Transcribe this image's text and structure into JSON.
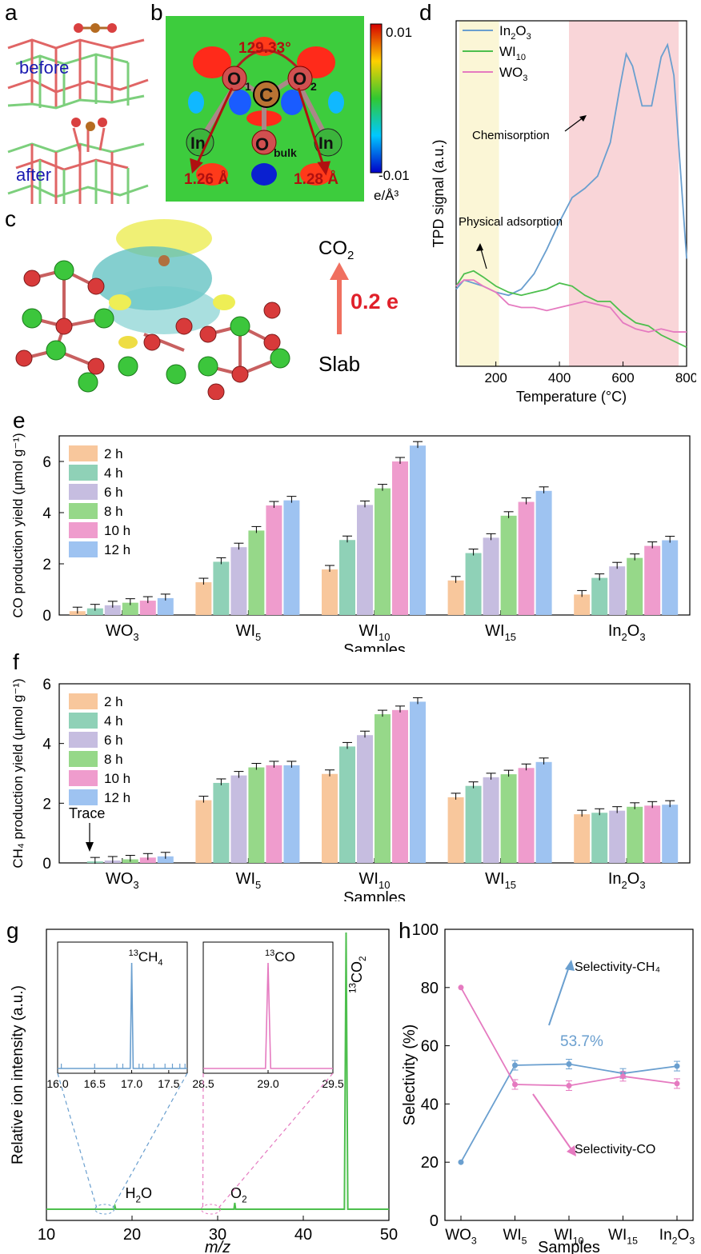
{
  "panels": {
    "a": {
      "letter": "a",
      "label_before": "before",
      "label_after": "after"
    },
    "b": {
      "letter": "b",
      "angle": "129.33°",
      "atoms": [
        "O",
        "1",
        "C",
        "O",
        "2",
        "In",
        "In",
        "O",
        "bulk"
      ],
      "dist_left": "1.26 Å",
      "dist_right": "1.28 Å",
      "colorbar_max": "0.01",
      "colorbar_min": "-0.01",
      "colorbar_unit": "e/Å³"
    },
    "c": {
      "letter": "c",
      "top_label": "CO",
      "top_sub": "2",
      "arrow_value": "0.2 e",
      "bottom_label": "Slab"
    },
    "d": {
      "letter": "d"
    },
    "e": {
      "letter": "e"
    },
    "f": {
      "letter": "f",
      "annotation": "Trace"
    },
    "g": {
      "letter": "g"
    },
    "h": {
      "letter": "h"
    }
  },
  "colors": {
    "h2": "#f8c79c",
    "h4": "#8fd1b7",
    "h6": "#c6bde0",
    "h8": "#96d889",
    "h10": "#ef9ccd",
    "h12": "#9ec3f1",
    "in2o3": "#6a9fcf",
    "wi10": "#4dbf4d",
    "wo3": "#e57ac0",
    "green_ms": "#4dbf4d",
    "blue_ms": "#6a9fcf",
    "pink_ms": "#e57ac0"
  },
  "chart_data": [
    {
      "id": "d",
      "type": "line",
      "xlabel": "Temperature (°C)",
      "ylabel": "TPD signal (a.u.)",
      "xlim": [
        75,
        800
      ],
      "xticks": [
        200,
        400,
        600,
        800
      ],
      "legend": [
        "In2O3",
        "WI10",
        "WO3"
      ],
      "annotations": [
        "Chemisorption",
        "Physical adsorption"
      ],
      "shaded_regions": [
        {
          "from": 85,
          "to": 210,
          "color": "#fbf6d6"
        },
        {
          "from": 430,
          "to": 775,
          "color": "#f9d5d8"
        }
      ],
      "series": [
        {
          "name": "In2O3",
          "color": "#6a9fcf",
          "x": [
            75,
            100,
            130,
            160,
            200,
            240,
            280,
            320,
            360,
            400,
            440,
            480,
            520,
            560,
            590,
            610,
            630,
            660,
            690,
            720,
            740,
            760,
            780,
            800
          ],
          "y": [
            0.2,
            0.23,
            0.22,
            0.21,
            0.19,
            0.18,
            0.2,
            0.25,
            0.33,
            0.42,
            0.5,
            0.53,
            0.57,
            0.68,
            0.86,
            0.97,
            0.93,
            0.8,
            0.8,
            0.96,
            1.0,
            0.9,
            0.6,
            0.3
          ]
        },
        {
          "name": "WI10",
          "color": "#4dbf4d",
          "x": [
            75,
            100,
            130,
            160,
            200,
            240,
            280,
            320,
            360,
            400,
            440,
            480,
            520,
            560,
            600,
            640,
            680,
            720,
            760,
            800
          ],
          "y": [
            0.21,
            0.25,
            0.26,
            0.24,
            0.21,
            0.19,
            0.18,
            0.19,
            0.2,
            0.22,
            0.21,
            0.18,
            0.16,
            0.16,
            0.12,
            0.09,
            0.08,
            0.05,
            0.03,
            0.01
          ]
        },
        {
          "name": "WO3",
          "color": "#e57ac0",
          "x": [
            75,
            100,
            130,
            160,
            200,
            240,
            280,
            320,
            360,
            400,
            440,
            480,
            520,
            560,
            600,
            640,
            680,
            720,
            760,
            800
          ],
          "y": [
            0.21,
            0.23,
            0.23,
            0.21,
            0.19,
            0.15,
            0.14,
            0.14,
            0.13,
            0.14,
            0.15,
            0.16,
            0.15,
            0.14,
            0.09,
            0.07,
            0.06,
            0.07,
            0.06,
            0.06
          ]
        }
      ]
    },
    {
      "id": "e",
      "type": "bar",
      "xlabel": "Samples",
      "ylabel": "CO production yield (μmol g⁻¹)",
      "ylim": [
        0,
        7
      ],
      "yticks": [
        0,
        2,
        4,
        6
      ],
      "categories": [
        "WO3",
        "WI5",
        "WI10",
        "WI15",
        "In2O3"
      ],
      "series": [
        {
          "name": "2 h",
          "values": [
            0.15,
            1.28,
            1.78,
            1.35,
            0.8
          ]
        },
        {
          "name": "4 h",
          "values": [
            0.26,
            2.08,
            2.93,
            2.42,
            1.45
          ]
        },
        {
          "name": "6 h",
          "values": [
            0.38,
            2.65,
            4.3,
            3.02,
            1.9
          ]
        },
        {
          "name": "8 h",
          "values": [
            0.48,
            3.3,
            4.95,
            3.88,
            2.23
          ]
        },
        {
          "name": "10 h",
          "values": [
            0.56,
            4.28,
            6.0,
            4.42,
            2.7
          ]
        },
        {
          "name": "12 h",
          "values": [
            0.66,
            4.48,
            6.62,
            4.85,
            2.92
          ]
        }
      ]
    },
    {
      "id": "f",
      "type": "bar",
      "xlabel": "Samples",
      "ylabel": "CH₄ production yield (μmol g⁻¹)",
      "ylim": [
        0,
        6
      ],
      "yticks": [
        0,
        2,
        4,
        6
      ],
      "categories": [
        "WO3",
        "WI5",
        "WI10",
        "WI15",
        "In2O3"
      ],
      "series": [
        {
          "name": "2 h",
          "values": [
            0.0,
            2.1,
            2.98,
            2.2,
            1.63
          ]
        },
        {
          "name": "4 h",
          "values": [
            0.05,
            2.68,
            3.9,
            2.58,
            1.68
          ]
        },
        {
          "name": "6 h",
          "values": [
            0.08,
            2.93,
            4.28,
            2.87,
            1.75
          ]
        },
        {
          "name": "8 h",
          "values": [
            0.12,
            3.2,
            4.98,
            2.97,
            1.88
          ]
        },
        {
          "name": "10 h",
          "values": [
            0.18,
            3.27,
            5.12,
            3.18,
            1.92
          ]
        },
        {
          "name": "12 h",
          "values": [
            0.22,
            3.27,
            5.4,
            3.38,
            1.95
          ]
        }
      ]
    },
    {
      "id": "g",
      "type": "line",
      "xlabel": "m/z",
      "ylabel": "Relative ion intensity (a.u.)",
      "xlim": [
        10,
        50
      ],
      "xticks": [
        10,
        20,
        30,
        40,
        50
      ],
      "peaks": [
        {
          "label": "H2O",
          "mz": 18
        },
        {
          "label": "O2",
          "mz": 32
        },
        {
          "label": "13CO2",
          "mz": 45
        }
      ],
      "insets": [
        {
          "label": "13CH4",
          "xlim": [
            16.0,
            17.75
          ],
          "xticks": [
            "16.0",
            "16.5",
            "17.0",
            "17.5"
          ],
          "peak": 17.0
        },
        {
          "label": "13CO",
          "xlim": [
            28.5,
            29.5
          ],
          "xticks": [
            "28.5",
            "29.0",
            "29.5"
          ],
          "peak": 29.0
        }
      ]
    },
    {
      "id": "h",
      "type": "line",
      "xlabel": "Samples",
      "ylabel": "Selectivity (%)",
      "ylim": [
        0,
        100
      ],
      "yticks": [
        0,
        20,
        40,
        60,
        80,
        100
      ],
      "categories": [
        "WO3",
        "WI5",
        "WI10",
        "WI15",
        "In2O3"
      ],
      "annotations": [
        "Selectivity-CH₄",
        "Selectivity-CO",
        "53.7%"
      ],
      "series": [
        {
          "name": "Selectivity-CH₄",
          "values": [
            20.0,
            53.3,
            53.7,
            50.5,
            53.0
          ]
        },
        {
          "name": "Selectivity-CO",
          "values": [
            80.0,
            46.7,
            46.3,
            49.5,
            47.0
          ]
        }
      ]
    }
  ]
}
